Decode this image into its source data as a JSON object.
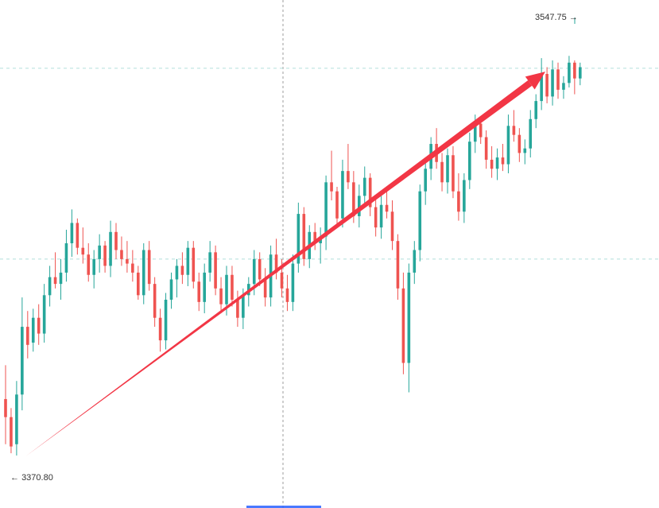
{
  "chart_data": {
    "type": "candlestick",
    "up_color": "#26a69a",
    "down_color": "#ef5350",
    "arrow_color": "#f23645",
    "grid_color": "#b2dfdb",
    "crosshair_color": "#9e9e9e",
    "ylim": [
      3365,
      3565
    ],
    "high_label": "3547.75",
    "low_label": "3370.80",
    "horizontal_levels": [
      3542.5,
      3458.0
    ],
    "candles": [
      [
        3396,
        3411,
        3376,
        3388
      ],
      [
        3388,
        3392,
        3372,
        3375
      ],
      [
        3376,
        3404,
        3371,
        3398
      ],
      [
        3398,
        3441,
        3391,
        3428
      ],
      [
        3428,
        3435,
        3414,
        3420
      ],
      [
        3421,
        3436,
        3417,
        3432
      ],
      [
        3432,
        3438,
        3420,
        3425
      ],
      [
        3425,
        3447,
        3421,
        3442
      ],
      [
        3442,
        3455,
        3437,
        3450
      ],
      [
        3450,
        3461,
        3445,
        3447
      ],
      [
        3447,
        3458,
        3440,
        3452
      ],
      [
        3452,
        3471,
        3448,
        3465
      ],
      [
        3465,
        3480,
        3459,
        3474
      ],
      [
        3474,
        3476,
        3460,
        3463
      ],
      [
        3463,
        3472,
        3456,
        3460
      ],
      [
        3460,
        3465,
        3448,
        3451
      ],
      [
        3451,
        3462,
        3445,
        3458
      ],
      [
        3458,
        3469,
        3452,
        3464
      ],
      [
        3464,
        3466,
        3452,
        3455
      ],
      [
        3455,
        3475,
        3450,
        3470
      ],
      [
        3470,
        3474,
        3458,
        3462
      ],
      [
        3462,
        3468,
        3455,
        3458
      ],
      [
        3458,
        3466,
        3452,
        3456
      ],
      [
        3456,
        3462,
        3448,
        3452
      ],
      [
        3452,
        3455,
        3440,
        3442
      ],
      [
        3442,
        3465,
        3438,
        3462
      ],
      [
        3462,
        3466,
        3444,
        3447
      ],
      [
        3447,
        3450,
        3428,
        3432
      ],
      [
        3432,
        3436,
        3417,
        3422
      ],
      [
        3422,
        3443,
        3418,
        3440
      ],
      [
        3440,
        3452,
        3436,
        3449
      ],
      [
        3449,
        3458,
        3441,
        3455
      ],
      [
        3455,
        3461,
        3447,
        3451
      ],
      [
        3451,
        3466,
        3446,
        3463
      ],
      [
        3463,
        3466,
        3445,
        3448
      ],
      [
        3448,
        3452,
        3435,
        3439
      ],
      [
        3439,
        3456,
        3434,
        3452
      ],
      [
        3452,
        3466,
        3448,
        3461
      ],
      [
        3461,
        3464,
        3442,
        3445
      ],
      [
        3445,
        3450,
        3434,
        3438
      ],
      [
        3438,
        3455,
        3433,
        3451
      ],
      [
        3451,
        3455,
        3437,
        3440
      ],
      [
        3440,
        3444,
        3428,
        3432
      ],
      [
        3432,
        3445,
        3427,
        3442
      ],
      [
        3442,
        3450,
        3437,
        3447
      ],
      [
        3447,
        3462,
        3442,
        3458
      ],
      [
        3458,
        3461,
        3446,
        3449
      ],
      [
        3449,
        3454,
        3437,
        3441
      ],
      [
        3441,
        3464,
        3437,
        3460
      ],
      [
        3460,
        3467,
        3449,
        3452
      ],
      [
        3452,
        3458,
        3441,
        3445
      ],
      [
        3445,
        3451,
        3435,
        3439
      ],
      [
        3439,
        3460,
        3435,
        3456
      ],
      [
        3456,
        3483,
        3452,
        3478
      ],
      [
        3478,
        3481,
        3455,
        3458
      ],
      [
        3458,
        3473,
        3454,
        3470
      ],
      [
        3470,
        3474,
        3462,
        3465
      ],
      [
        3465,
        3472,
        3456,
        3468
      ],
      [
        3468,
        3495,
        3462,
        3492
      ],
      [
        3492,
        3506,
        3484,
        3488
      ],
      [
        3488,
        3490,
        3472,
        3476
      ],
      [
        3476,
        3502,
        3472,
        3497
      ],
      [
        3497,
        3509,
        3489,
        3492
      ],
      [
        3492,
        3497,
        3474,
        3477
      ],
      [
        3477,
        3491,
        3472,
        3486
      ],
      [
        3486,
        3499,
        3481,
        3494
      ],
      [
        3494,
        3496,
        3477,
        3481
      ],
      [
        3481,
        3485,
        3468,
        3472
      ],
      [
        3472,
        3486,
        3467,
        3482
      ],
      [
        3482,
        3490,
        3476,
        3479
      ],
      [
        3479,
        3484,
        3462,
        3466
      ],
      [
        3466,
        3469,
        3440,
        3445
      ],
      [
        3445,
        3452,
        3407,
        3412
      ],
      [
        3412,
        3456,
        3399,
        3452
      ],
      [
        3452,
        3466,
        3447,
        3462
      ],
      [
        3462,
        3491,
        3457,
        3488
      ],
      [
        3488,
        3503,
        3482,
        3498
      ],
      [
        3498,
        3512,
        3493,
        3509
      ],
      [
        3509,
        3516,
        3498,
        3501
      ],
      [
        3501,
        3505,
        3488,
        3492
      ],
      [
        3492,
        3507,
        3487,
        3504
      ],
      [
        3504,
        3508,
        3485,
        3488
      ],
      [
        3488,
        3496,
        3475,
        3479
      ],
      [
        3479,
        3496,
        3474,
        3493
      ],
      [
        3493,
        3514,
        3489,
        3510
      ],
      [
        3510,
        3522,
        3505,
        3518
      ],
      [
        3518,
        3521,
        3509,
        3512
      ],
      [
        3512,
        3515,
        3498,
        3502
      ],
      [
        3502,
        3508,
        3494,
        3498
      ],
      [
        3498,
        3507,
        3493,
        3503
      ],
      [
        3503,
        3509,
        3497,
        3500
      ],
      [
        3500,
        3522,
        3496,
        3517
      ],
      [
        3517,
        3524,
        3510,
        3513
      ],
      [
        3513,
        3516,
        3501,
        3505
      ],
      [
        3505,
        3511,
        3500,
        3507
      ],
      [
        3507,
        3524,
        3503,
        3520
      ],
      [
        3520,
        3531,
        3516,
        3528
      ],
      [
        3528,
        3547,
        3524,
        3540
      ],
      [
        3540,
        3543,
        3527,
        3530
      ],
      [
        3530,
        3546,
        3526,
        3542
      ],
      [
        3542,
        3545,
        3529,
        3533
      ],
      [
        3533,
        3539,
        3529,
        3536
      ],
      [
        3536,
        3548,
        3534,
        3545
      ],
      [
        3545,
        3546,
        3531,
        3538
      ],
      [
        3538,
        3545,
        3535,
        3543
      ]
    ]
  }
}
